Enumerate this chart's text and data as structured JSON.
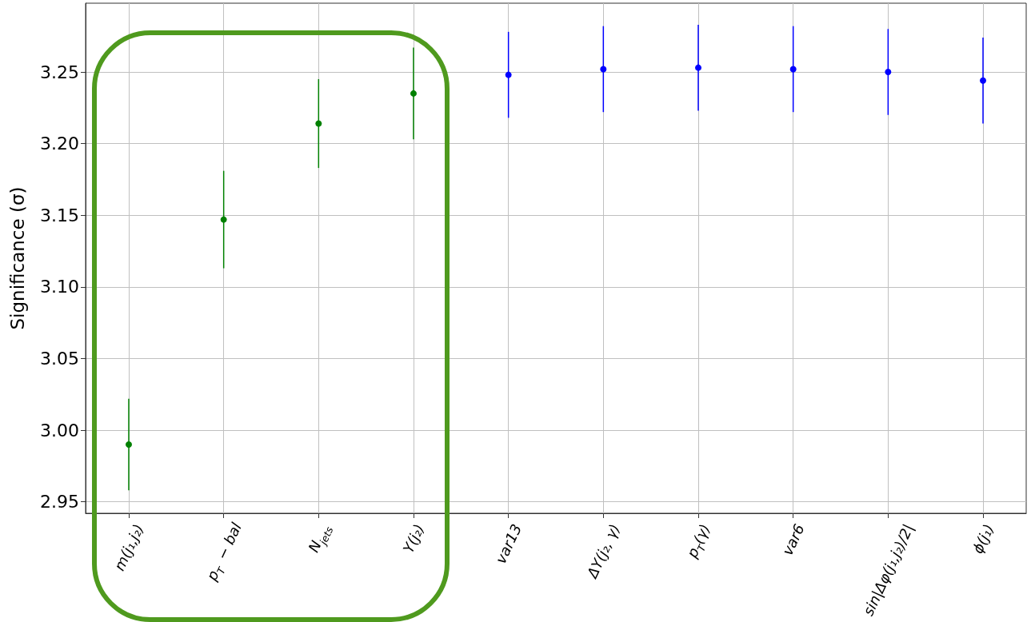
{
  "chart_data": {
    "type": "scatter",
    "ylabel": "Significance (σ)",
    "categories": [
      "m(j₁,j₂)",
      "p$_{T}$ − bal",
      "N$_{jets}$",
      "Y(j₂)",
      "var13",
      "ΔY(j₂, γ)",
      "p$_{T}$(γ)",
      "var6",
      "sin|Δφ(j₁,j₂)/2|",
      "ϕ(j₁)"
    ],
    "series": [
      {
        "color": "#008000",
        "values": [
          2.99,
          3.147,
          3.214,
          3.235,
          null,
          null,
          null,
          null,
          null,
          null
        ],
        "errors": [
          0.032,
          0.034,
          0.031,
          0.032,
          null,
          null,
          null,
          null,
          null,
          null
        ]
      },
      {
        "color": "#0000ff",
        "values": [
          null,
          null,
          null,
          null,
          3.248,
          3.252,
          3.253,
          3.252,
          3.25,
          3.244
        ],
        "errors": [
          null,
          null,
          null,
          null,
          0.03,
          0.03,
          0.03,
          0.03,
          0.03,
          0.03
        ]
      }
    ],
    "ylim": [
      2.942,
      3.298
    ],
    "yticks": [
      2.95,
      {
        "value": 3.0,
        "label": "3.00"
      },
      3.05,
      {
        "value": 3.1,
        "label": "3.10"
      },
      3.15,
      {
        "value": 3.2,
        "label": "3.20"
      },
      3.25
    ],
    "grid": true,
    "marker": "circle"
  }
}
